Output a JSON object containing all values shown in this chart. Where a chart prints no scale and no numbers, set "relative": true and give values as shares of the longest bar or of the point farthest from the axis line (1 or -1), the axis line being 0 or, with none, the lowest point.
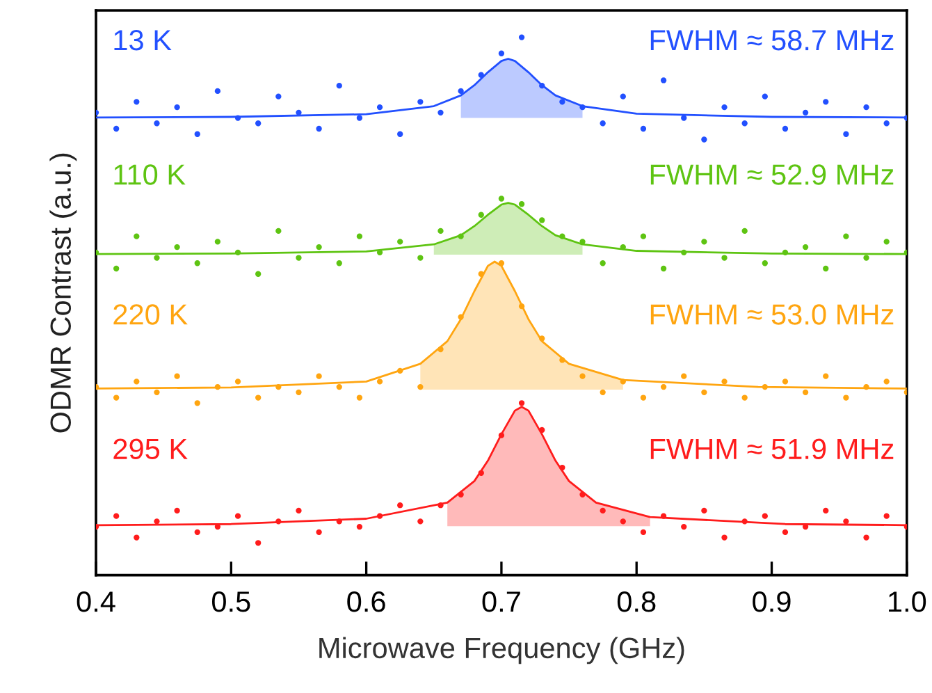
{
  "chart_data": {
    "type": "scatter",
    "xlabel": "Microwave Frequency (GHz)",
    "ylabel": "ODMR Contrast (a.u.)",
    "relative": true,
    "marker": "circle",
    "xlim": [
      0.4,
      1.0
    ],
    "xticks": [
      0.4,
      0.5,
      0.6,
      0.7,
      0.8,
      0.9,
      {
        "value": 1.0,
        "label": "1.0"
      }
    ],
    "x": [
      0.4,
      0.415,
      0.43,
      0.445,
      0.46,
      0.475,
      0.49,
      0.505,
      0.52,
      0.535,
      0.55,
      0.565,
      0.58,
      0.595,
      0.61,
      0.625,
      0.64,
      0.655,
      0.67,
      0.685,
      0.7,
      0.715,
      0.73,
      0.745,
      0.76,
      0.775,
      0.79,
      0.805,
      0.82,
      0.835,
      0.85,
      0.865,
      0.88,
      0.895,
      0.91,
      0.925,
      0.94,
      0.955,
      0.97,
      0.985,
      1.0
    ],
    "series": [
      {
        "name": "13 K",
        "color": "#2250ff",
        "values": [
          0.86,
          0.83,
          0.88,
          0.84,
          0.87,
          0.82,
          0.9,
          0.85,
          0.84,
          0.89,
          0.86,
          0.83,
          0.91,
          0.85,
          0.87,
          0.82,
          0.88,
          0.86,
          0.9,
          0.93,
          0.97,
          1.0,
          0.91,
          0.88,
          0.87,
          0.84,
          0.89,
          0.83,
          0.92,
          0.85,
          0.81,
          0.87,
          0.84,
          0.89,
          0.83,
          0.86,
          0.88,
          0.82,
          0.87,
          0.84,
          0.85
        ]
      },
      {
        "name": "110 K",
        "color": "#5ec412",
        "values": [
          0.6,
          0.57,
          0.63,
          0.59,
          0.61,
          0.58,
          0.62,
          0.6,
          0.56,
          0.64,
          0.59,
          0.61,
          0.58,
          0.63,
          0.6,
          0.62,
          0.59,
          0.64,
          0.63,
          0.67,
          0.7,
          0.69,
          0.66,
          0.63,
          0.62,
          0.58,
          0.61,
          0.63,
          0.57,
          0.6,
          0.62,
          0.59,
          0.64,
          0.58,
          0.6,
          0.61,
          0.57,
          0.63,
          0.59,
          0.62,
          0.6
        ]
      },
      {
        "name": "220 K",
        "color": "#ffa510",
        "values": [
          0.35,
          0.33,
          0.36,
          0.34,
          0.37,
          0.32,
          0.35,
          0.36,
          0.33,
          0.35,
          0.34,
          0.37,
          0.35,
          0.33,
          0.36,
          0.38,
          0.35,
          0.42,
          0.48,
          0.56,
          0.58,
          0.5,
          0.44,
          0.4,
          0.37,
          0.34,
          0.36,
          0.33,
          0.35,
          0.37,
          0.34,
          0.36,
          0.33,
          0.35,
          0.36,
          0.34,
          0.37,
          0.33,
          0.35,
          0.36,
          0.34
        ]
      },
      {
        "name": "295 K",
        "color": "#ff1c1c",
        "values": [
          0.09,
          0.11,
          0.07,
          0.1,
          0.12,
          0.08,
          0.09,
          0.11,
          0.06,
          0.1,
          0.12,
          0.08,
          0.1,
          0.09,
          0.11,
          0.13,
          0.1,
          0.13,
          0.15,
          0.19,
          0.26,
          0.32,
          0.27,
          0.2,
          0.15,
          0.12,
          0.1,
          0.08,
          0.11,
          0.09,
          0.12,
          0.07,
          0.1,
          0.11,
          0.08,
          0.09,
          0.12,
          0.1,
          0.07,
          0.11,
          0.09
        ]
      },
      {
        "type": "line",
        "marker": "none",
        "color": "#2250ff",
        "x": [
          0.4,
          0.5,
          0.6,
          0.65,
          0.67,
          0.68,
          0.69,
          0.7,
          0.705,
          0.71,
          0.72,
          0.73,
          0.74,
          0.76,
          0.8,
          0.9,
          1.0
        ],
        "values": [
          0.851,
          0.852,
          0.857,
          0.872,
          0.892,
          0.911,
          0.935,
          0.956,
          0.96,
          0.956,
          0.935,
          0.911,
          0.892,
          0.872,
          0.858,
          0.852,
          0.851
        ],
        "lower": [
          null,
          null,
          null,
          null,
          0.85,
          0.85,
          0.85,
          0.85,
          0.85,
          0.85,
          0.85,
          0.85,
          0.85,
          0.85,
          null,
          null,
          null
        ],
        "upper": [
          null,
          null,
          null,
          null,
          0.892,
          0.911,
          0.935,
          0.956,
          0.96,
          0.956,
          0.935,
          0.911,
          0.892,
          0.872,
          null,
          null,
          null
        ]
      },
      {
        "type": "line",
        "marker": "none",
        "color": "#5ec412",
        "x": [
          0.4,
          0.5,
          0.6,
          0.65,
          0.67,
          0.68,
          0.69,
          0.7,
          0.705,
          0.71,
          0.72,
          0.73,
          0.74,
          0.76,
          0.8,
          0.9,
          1.0
        ],
        "values": [
          0.597,
          0.598,
          0.602,
          0.615,
          0.632,
          0.649,
          0.67,
          0.689,
          0.692,
          0.689,
          0.67,
          0.649,
          0.632,
          0.615,
          0.603,
          0.598,
          0.597
        ],
        "lower": [
          null,
          null,
          null,
          0.596,
          0.596,
          0.596,
          0.596,
          0.596,
          0.596,
          0.596,
          0.596,
          0.596,
          0.596,
          0.596,
          null,
          null,
          null
        ],
        "upper": [
          null,
          null,
          null,
          0.615,
          0.632,
          0.649,
          0.67,
          0.689,
          0.692,
          0.689,
          0.67,
          0.649,
          0.632,
          0.615,
          null,
          null,
          null
        ]
      },
      {
        "type": "line",
        "marker": "none",
        "color": "#ffa510",
        "x": [
          0.4,
          0.5,
          0.6,
          0.64,
          0.66,
          0.67,
          0.68,
          0.69,
          0.695,
          0.7,
          0.71,
          0.72,
          0.73,
          0.75,
          0.79,
          0.89,
          1.0
        ],
        "values": [
          0.347,
          0.349,
          0.36,
          0.393,
          0.435,
          0.476,
          0.528,
          0.575,
          0.583,
          0.575,
          0.528,
          0.476,
          0.435,
          0.393,
          0.363,
          0.35,
          0.347
        ],
        "lower": [
          null,
          null,
          null,
          0.345,
          0.345,
          0.345,
          0.345,
          0.345,
          0.345,
          0.345,
          0.345,
          0.345,
          0.345,
          0.345,
          0.345,
          null,
          null
        ],
        "upper": [
          null,
          null,
          null,
          0.393,
          0.435,
          0.476,
          0.528,
          0.575,
          0.583,
          0.575,
          0.528,
          0.476,
          0.435,
          0.393,
          0.363,
          null,
          null
        ]
      },
      {
        "type": "line",
        "marker": "none",
        "color": "#ff1c1c",
        "x": [
          0.4,
          0.5,
          0.6,
          0.66,
          0.68,
          0.69,
          0.7,
          0.71,
          0.715,
          0.72,
          0.73,
          0.74,
          0.75,
          0.77,
          0.81,
          0.91,
          1.0
        ],
        "values": [
          0.093,
          0.095,
          0.105,
          0.135,
          0.175,
          0.213,
          0.262,
          0.306,
          0.313,
          0.306,
          0.262,
          0.213,
          0.175,
          0.135,
          0.108,
          0.095,
          0.093
        ],
        "lower": [
          null,
          null,
          null,
          0.091,
          0.091,
          0.091,
          0.091,
          0.091,
          0.091,
          0.091,
          0.091,
          0.091,
          0.091,
          0.091,
          0.091,
          null,
          null
        ],
        "upper": [
          null,
          null,
          null,
          0.135,
          0.175,
          0.213,
          0.262,
          0.306,
          0.313,
          0.306,
          0.262,
          0.213,
          0.175,
          0.135,
          0.108,
          null,
          null
        ]
      }
    ],
    "annotations": [
      "FWHM ≈ 58.7 MHz",
      "FWHM ≈ 52.9 MHz",
      "FWHM ≈ 53.0 MHz",
      "FWHM ≈ 51.9 MHz"
    ]
  }
}
